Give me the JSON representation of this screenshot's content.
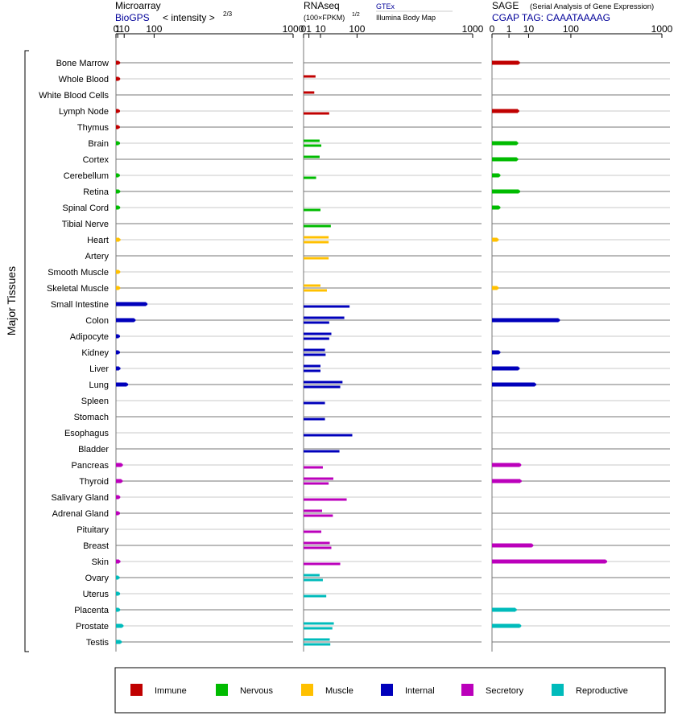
{
  "panels": {
    "microarray": {
      "title": "Microarray",
      "source": "BioGPS",
      "scale_note": "< intensity >",
      "scale_exponent": "2/3"
    },
    "rnaseq": {
      "title": "RNAseq",
      "scale_note": "(100×FPKM)",
      "scale_exponent": "1/2",
      "source": "GTEx",
      "source2": "Illumina Body Map"
    },
    "sage": {
      "title": "SAGE",
      "subtitle": "(Serial Analysis of Gene Expression)",
      "source": "CGAP TAG: CAAATAAAAG"
    }
  },
  "y_axis_label": "Major Tissues",
  "chart_data": {
    "type": "bar",
    "tick_labels": [
      "0",
      "1",
      "10",
      "100",
      "1000"
    ],
    "tick_values": [
      0,
      1,
      10,
      100,
      1000
    ],
    "xlim": [
      0,
      1000
    ],
    "categories": [
      "Bone Marrow",
      "Whole Blood",
      "White Blood Cells",
      "Lymph Node",
      "Thymus",
      "Brain",
      "Cortex",
      "Cerebellum",
      "Retina",
      "Spinal Cord",
      "Tibial Nerve",
      "Heart",
      "Artery",
      "Smooth Muscle",
      "Skeletal Muscle",
      "Small Intestine",
      "Colon",
      "Adipocyte",
      "Kidney",
      "Liver",
      "Lung",
      "Spleen",
      "Stomach",
      "Esophagus",
      "Bladder",
      "Pancreas",
      "Thyroid",
      "Salivary Gland",
      "Adrenal Gland",
      "Pituitary",
      "Breast",
      "Skin",
      "Ovary",
      "Uterus",
      "Placenta",
      "Prostate",
      "Testis"
    ],
    "groups": [
      "Immune",
      "Immune",
      "Immune",
      "Immune",
      "Immune",
      "Nervous",
      "Nervous",
      "Nervous",
      "Nervous",
      "Nervous",
      "Nervous",
      "Muscle",
      "Muscle",
      "Muscle",
      "Muscle",
      "Internal",
      "Internal",
      "Internal",
      "Internal",
      "Internal",
      "Internal",
      "Internal",
      "Internal",
      "Internal",
      "Internal",
      "Secretory",
      "Secretory",
      "Secretory",
      "Secretory",
      "Secretory",
      "Secretory",
      "Secretory",
      "Reproductive",
      "Reproductive",
      "Reproductive",
      "Reproductive",
      "Reproductive"
    ],
    "legend": [
      {
        "name": "Immune",
        "color": "#c00000"
      },
      {
        "name": "Nervous",
        "color": "#00bb00"
      },
      {
        "name": "Muscle",
        "color": "#ffc000"
      },
      {
        "name": "Internal",
        "color": "#0000bb"
      },
      {
        "name": "Secretory",
        "color": "#bb00bb"
      },
      {
        "name": "Reproductive",
        "color": "#00bbbb"
      }
    ],
    "microarray": [
      2,
      2,
      null,
      1.8,
      1.7,
      1.8,
      null,
      1.7,
      2.1,
      2,
      null,
      2.4,
      null,
      2.1,
      2.1,
      70,
      33,
      1.8,
      1.8,
      2.3,
      15,
      null,
      null,
      null,
      null,
      5.5,
      5.2,
      2.1,
      1.8,
      null,
      null,
      2.3,
      1.5,
      1.9,
      2,
      6.5,
      4
    ],
    "rnaseq": [
      [
        null,
        null
      ],
      [
        5,
        null
      ],
      [
        4,
        null
      ],
      [
        null,
        23
      ],
      [
        null,
        null
      ],
      [
        9,
        11
      ],
      [
        9,
        null
      ],
      [
        null,
        5.5
      ],
      [
        null,
        null
      ],
      [
        null,
        10
      ],
      [
        null,
        26
      ],
      [
        22,
        22
      ],
      [
        null,
        22
      ],
      [
        null,
        null
      ],
      [
        10,
        19
      ],
      [
        null,
        74
      ],
      [
        58,
        23
      ],
      [
        27,
        23
      ],
      [
        16,
        17
      ],
      [
        10,
        10
      ],
      [
        53,
        47
      ],
      [
        null,
        16
      ],
      [
        null,
        16
      ],
      [
        null,
        83
      ],
      [
        null,
        45
      ],
      [
        null,
        13
      ],
      [
        31,
        22
      ],
      [
        null,
        65
      ],
      [
        12,
        30
      ],
      [
        null,
        11
      ],
      [
        24,
        27
      ],
      [
        null,
        47
      ],
      [
        9,
        13
      ],
      [
        null,
        18
      ],
      [
        null,
        null
      ],
      [
        32,
        29
      ],
      [
        24,
        25
      ]
    ],
    "sage": [
      3.8,
      null,
      null,
      3.5,
      null,
      3.1,
      3.1,
      0.07,
      3.9,
      0.07,
      null,
      0.03,
      null,
      null,
      0.03,
      null,
      60,
      null,
      0.07,
      3.7,
      16,
      null,
      null,
      null,
      null,
      4.4,
      4.6,
      null,
      null,
      null,
      13,
      300,
      null,
      null,
      2.6,
      4.4,
      null
    ],
    "legend_position": "bottom"
  }
}
